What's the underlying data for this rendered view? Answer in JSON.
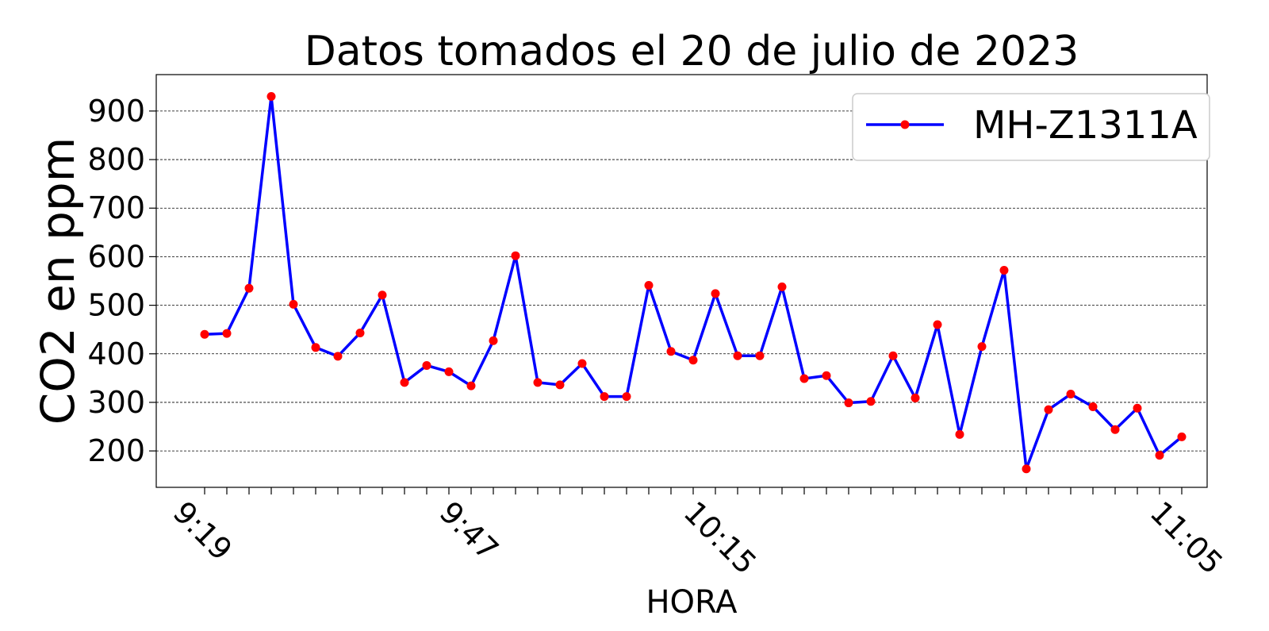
{
  "chart_data": {
    "type": "line",
    "title": "Datos tomados el 20 de julio de 2023",
    "xlabel": "HORA",
    "ylabel": "CO2 en ppm",
    "ylim": [
      125,
      975
    ],
    "yticks": [
      200,
      300,
      400,
      500,
      600,
      700,
      800,
      900
    ],
    "x_tick_labels": [
      {
        "index": 0,
        "label": "9:19"
      },
      {
        "index": 12,
        "label": "9:47"
      },
      {
        "index": 23,
        "label": "10:15"
      },
      {
        "index": 44,
        "label": "11:05"
      }
    ],
    "grid": "horizontal dashed",
    "legend_placement": "top-right",
    "series": [
      {
        "name": "MH-Z1311A",
        "line_color": "#0000ff",
        "marker_color": "#ff0000",
        "values": [
          440,
          442,
          535,
          930,
          502,
          413,
          395,
          443,
          521,
          341,
          376,
          363,
          334,
          427,
          602,
          341,
          336,
          380,
          312,
          312,
          541,
          405,
          387,
          524,
          396,
          396,
          538,
          349,
          355,
          299,
          302,
          396,
          309,
          460,
          234,
          415,
          572,
          163,
          285,
          317,
          291,
          244,
          288,
          191,
          229
        ]
      }
    ]
  }
}
